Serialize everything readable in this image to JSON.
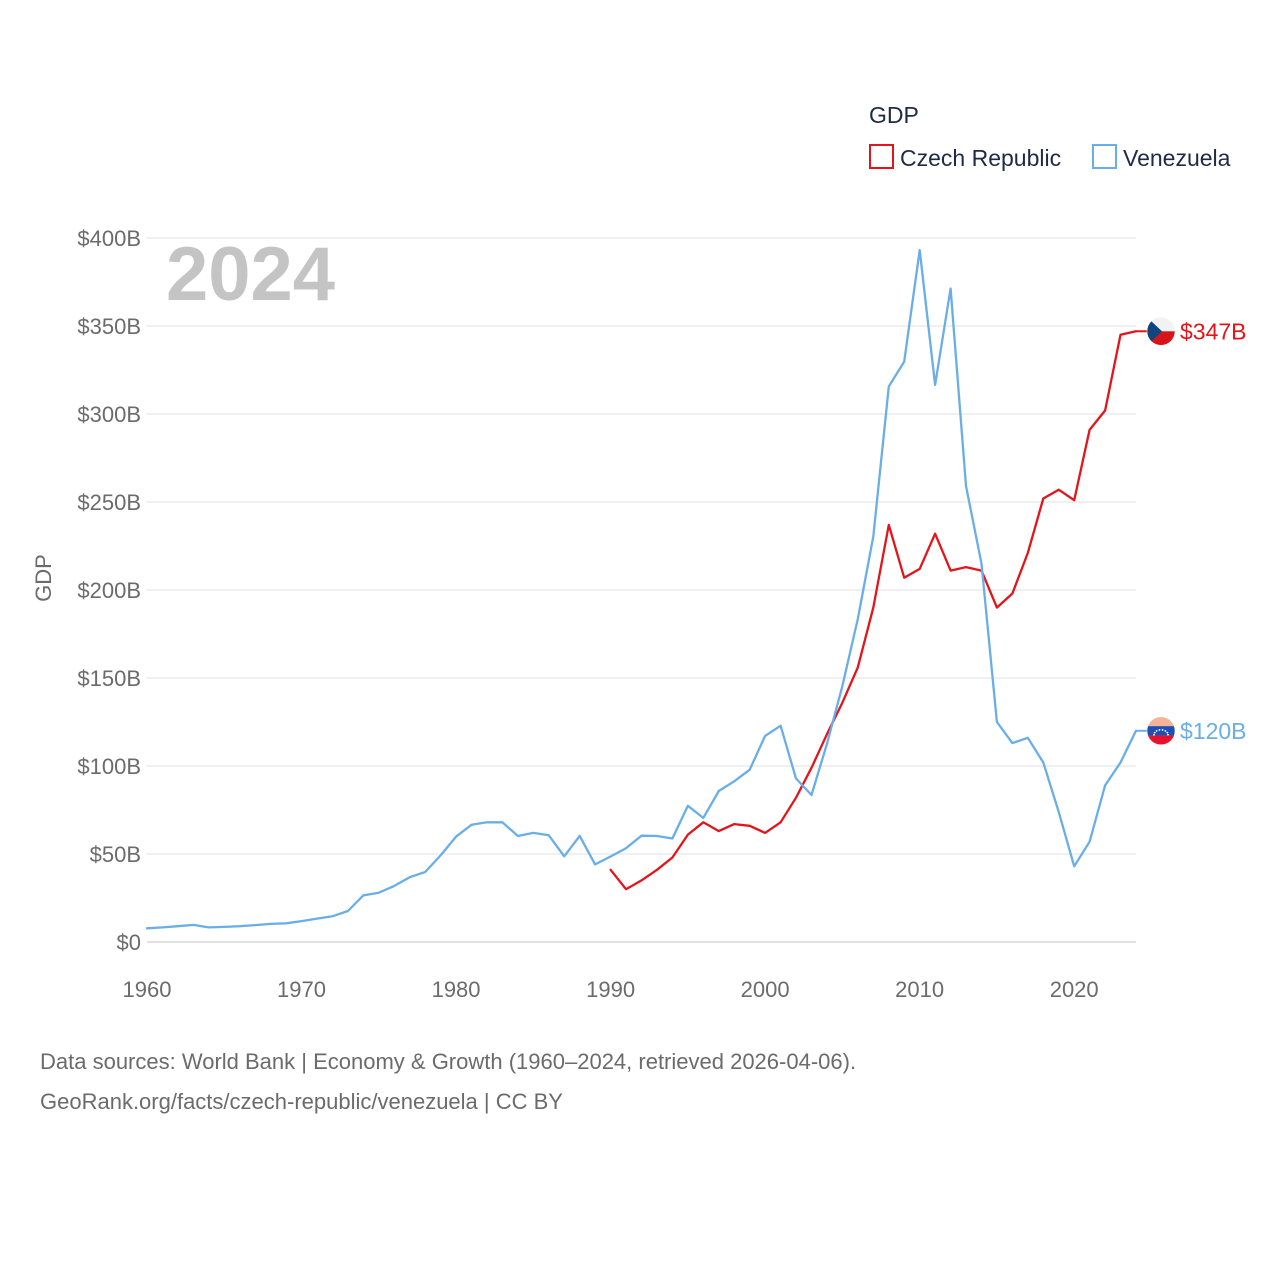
{
  "chart_data": {
    "type": "line",
    "title": "GDP",
    "ylabel": "GDP",
    "xlabel": "",
    "current_year_label": "2024",
    "xlim": [
      1960,
      2024
    ],
    "ylim": [
      0,
      400
    ],
    "x_ticks": [
      1960,
      1970,
      1980,
      1990,
      2000,
      2010,
      2020
    ],
    "x_tick_labels": [
      "1960",
      "1970",
      "1980",
      "1990",
      "2000",
      "2010",
      "2020"
    ],
    "y_ticks": [
      0,
      50,
      100,
      150,
      200,
      250,
      300,
      350,
      400
    ],
    "y_tick_labels": [
      "$0",
      "$50B",
      "$100B",
      "$150B",
      "$200B",
      "$250B",
      "$300B",
      "$350B",
      "$400B"
    ],
    "legend": {
      "title": "GDP",
      "position": "top-right",
      "entries": [
        "Czech Republic",
        "Venezuela"
      ]
    },
    "series": [
      {
        "name": "Czech Republic",
        "color": "#e3151a",
        "flag_icon": "czech-flag-icon",
        "end_label": "$347B",
        "x": [
          1990,
          1991,
          1992,
          1993,
          1994,
          1995,
          1996,
          1997,
          1998,
          1999,
          2000,
          2001,
          2002,
          2003,
          2004,
          2005,
          2006,
          2007,
          2008,
          2009,
          2010,
          2011,
          2012,
          2013,
          2014,
          2015,
          2016,
          2017,
          2018,
          2019,
          2020,
          2021,
          2022,
          2023,
          2024
        ],
        "values": [
          41,
          30,
          35,
          41,
          48,
          61,
          68,
          63,
          67,
          66,
          62,
          68,
          82,
          99,
          118,
          136,
          156,
          190,
          237,
          207,
          212,
          232,
          211,
          213,
          211,
          190,
          198,
          221,
          252,
          257,
          251,
          291,
          302,
          345,
          347
        ]
      },
      {
        "name": "Venezuela",
        "color": "#6aaee8",
        "flag_icon": "venezuela-flag-icon",
        "end_label": "$120B",
        "x": [
          1960,
          1961,
          1962,
          1963,
          1964,
          1965,
          1966,
          1967,
          1968,
          1969,
          1970,
          1971,
          1972,
          1973,
          1974,
          1975,
          1976,
          1977,
          1978,
          1979,
          1980,
          1981,
          1982,
          1983,
          1984,
          1985,
          1986,
          1987,
          1988,
          1989,
          1990,
          1991,
          1992,
          1993,
          1994,
          1995,
          1996,
          1997,
          1998,
          1999,
          2000,
          2001,
          2002,
          2003,
          2004,
          2005,
          2006,
          2007,
          2008,
          2009,
          2010,
          2011,
          2012,
          2013,
          2014,
          2015,
          2016,
          2017,
          2018,
          2019,
          2020,
          2021,
          2022,
          2023,
          2024
        ],
        "values": [
          7.8,
          8.3,
          9.0,
          9.7,
          8.3,
          8.6,
          9.0,
          9.6,
          10.3,
          10.6,
          11.9,
          13.3,
          14.6,
          17.6,
          26.5,
          28.0,
          31.9,
          36.8,
          39.8,
          49.2,
          59.9,
          66.6,
          68.0,
          68.0,
          60.2,
          62.0,
          60.6,
          48.7,
          60.3,
          44.1,
          48.6,
          53.3,
          60.4,
          60.2,
          58.8,
          77.4,
          70.5,
          85.8,
          91.3,
          97.9,
          117.1,
          122.9,
          92.9,
          83.5,
          112.5,
          145.5,
          183.5,
          230.4,
          315.6,
          329.8,
          393.2,
          316.5,
          371.3,
          259.1,
          215.0,
          125.0,
          113.0,
          116.0,
          102.0,
          74.0,
          43.0,
          57.0,
          89.0,
          102.0,
          120.0
        ]
      }
    ]
  },
  "source": {
    "line1": "Data sources: World Bank | Economy & Growth (1960–2024, retrieved 2026-04-06).",
    "line2": "GeoRank.org/facts/czech-republic/venezuela | CC BY"
  }
}
